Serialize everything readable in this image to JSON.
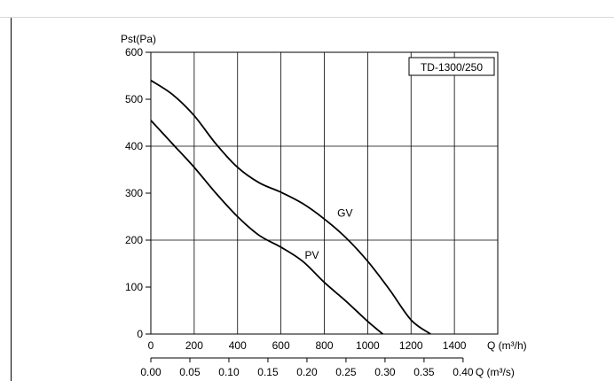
{
  "chart_data": {
    "type": "line",
    "model_label": "TD-1300/250",
    "ylabel": "Pst(Pa)",
    "xlabel": "Q (m³/h)",
    "x2label": "Q (m³/s)",
    "xlim": [
      0,
      1600
    ],
    "ylim": [
      0,
      600
    ],
    "x_ticks": [
      0,
      200,
      400,
      600,
      800,
      1000,
      1200,
      1400
    ],
    "y_ticks": [
      0,
      100,
      200,
      300,
      400,
      500,
      600
    ],
    "x_tick_labels": [
      "0",
      "200",
      "400",
      "600",
      "800",
      "1000",
      "1200",
      "1400"
    ],
    "y_tick_labels": [
      "0",
      "100",
      "200",
      "300",
      "400",
      "500",
      "600"
    ],
    "x2_ticks": [
      0.0,
      0.05,
      0.1,
      0.15,
      0.2,
      0.25,
      0.3,
      0.35,
      0.4
    ],
    "x2_tick_labels": [
      "0.00",
      "0.05",
      "0.10",
      "0.15",
      "0.20",
      "0.25",
      "0.30",
      "0.35",
      "0.40"
    ],
    "grid": {
      "vertical": true,
      "horizontal_at": [
        200,
        400
      ]
    },
    "series": [
      {
        "name": "GV",
        "color": "#000000",
        "x": [
          0,
          100,
          200,
          300,
          400,
          500,
          600,
          700,
          800,
          900,
          1000,
          1100,
          1200,
          1290
        ],
        "y": [
          540,
          510,
          465,
          405,
          355,
          322,
          302,
          278,
          245,
          205,
          155,
          95,
          30,
          0
        ]
      },
      {
        "name": "PV",
        "color": "#000000",
        "x": [
          0,
          100,
          200,
          300,
          400,
          500,
          600,
          700,
          800,
          900,
          1000,
          1070
        ],
        "y": [
          455,
          405,
          355,
          300,
          250,
          210,
          185,
          155,
          110,
          70,
          27,
          0
        ]
      }
    ],
    "annotations": [
      {
        "text": "GV",
        "x": 860,
        "y": 250
      },
      {
        "text": "PV",
        "x": 710,
        "y": 160
      }
    ]
  }
}
